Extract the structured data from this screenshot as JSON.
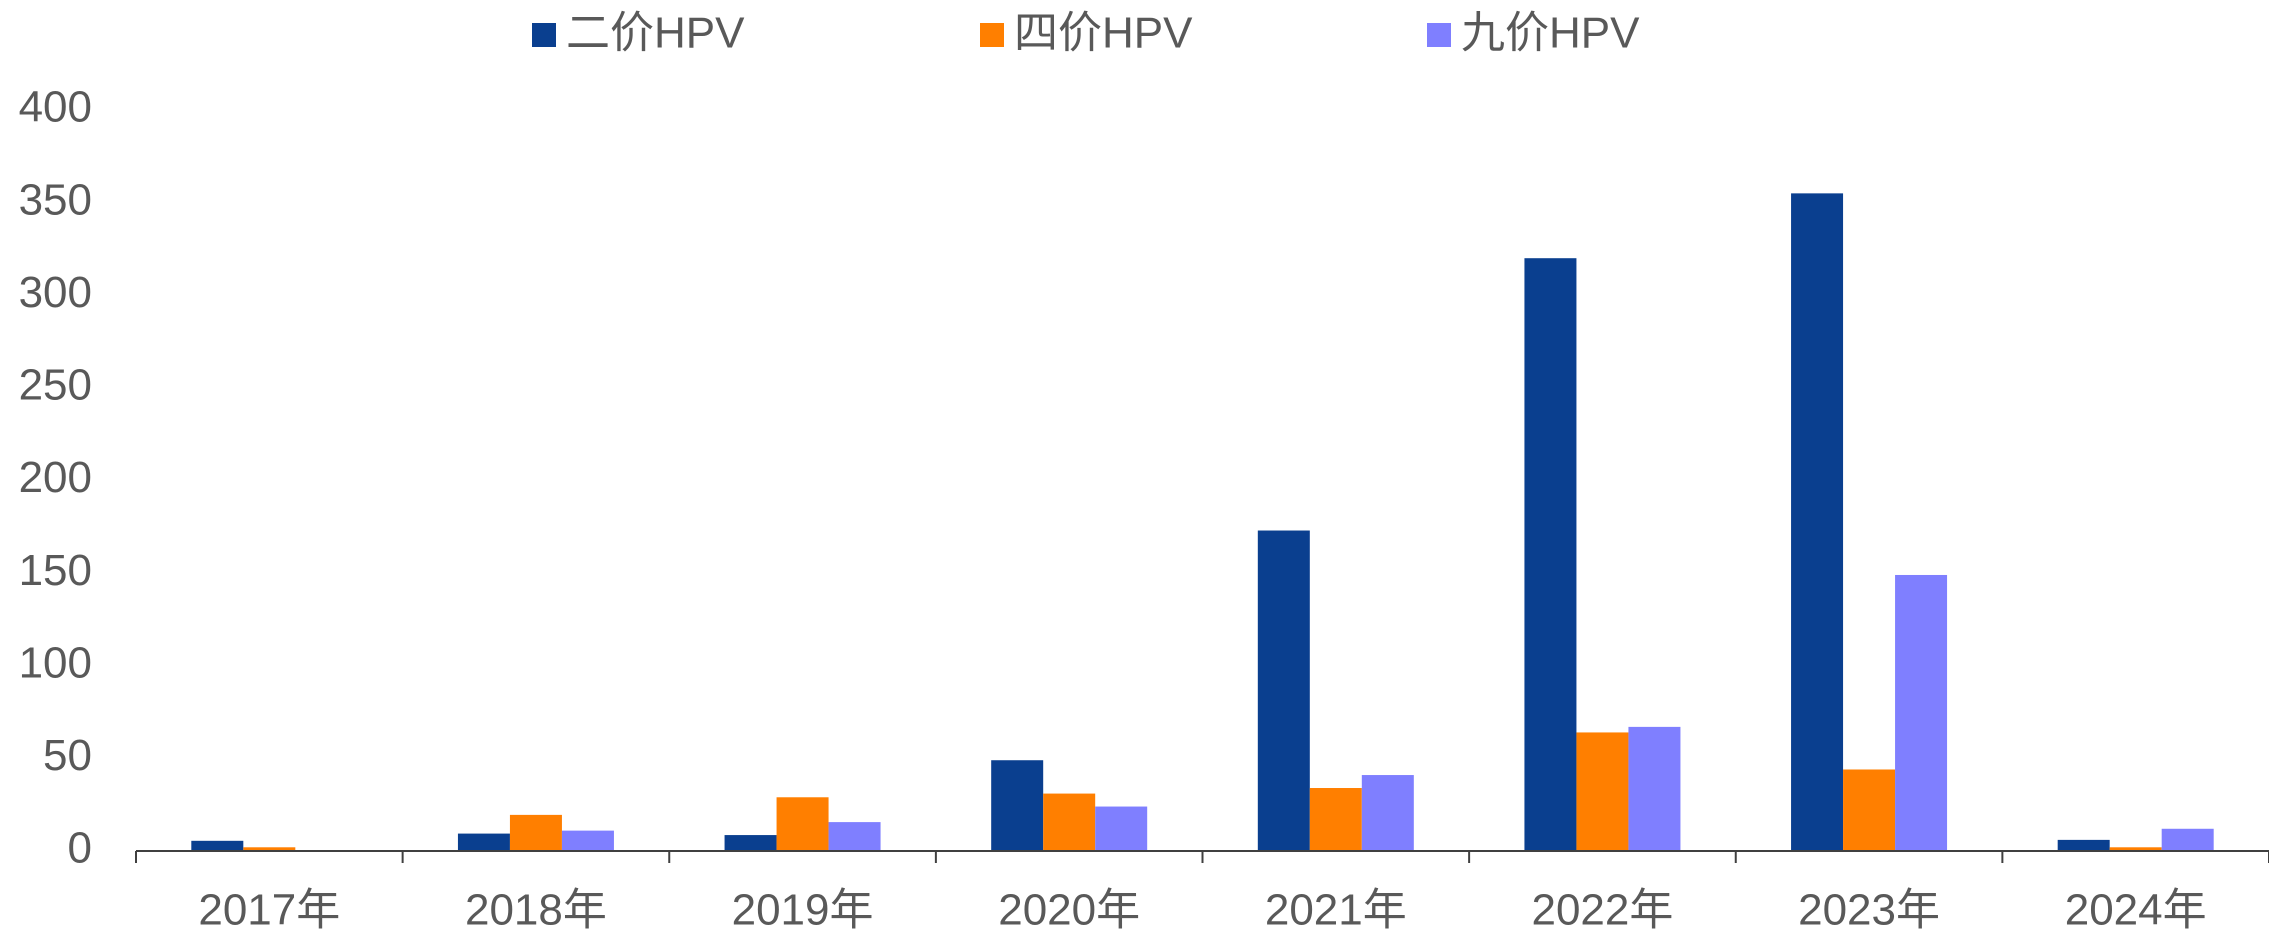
{
  "chart_data": {
    "type": "bar",
    "categories": [
      "2017年",
      "2018年",
      "2019年",
      "2020年",
      "2021年",
      "2022年",
      "2023年",
      "2024年"
    ],
    "series": [
      {
        "name": "二价HPV",
        "color": "#0a3f8f",
        "values": [
          5.5,
          9.4,
          8.6,
          49,
          173,
          320,
          355,
          6
        ]
      },
      {
        "name": "四价HPV",
        "color": "#ff7f00",
        "values": [
          2,
          19.5,
          29,
          31,
          34,
          64,
          44,
          2
        ]
      },
      {
        "name": "九价HPV",
        "color": "#7f7fff",
        "values": [
          0,
          11,
          15.6,
          24,
          41,
          67,
          149,
          12
        ]
      }
    ],
    "ylim": [
      0,
      400
    ],
    "yticks": [
      0,
      50,
      100,
      150,
      200,
      250,
      300,
      350,
      400
    ],
    "grid": false,
    "legend": "top"
  }
}
